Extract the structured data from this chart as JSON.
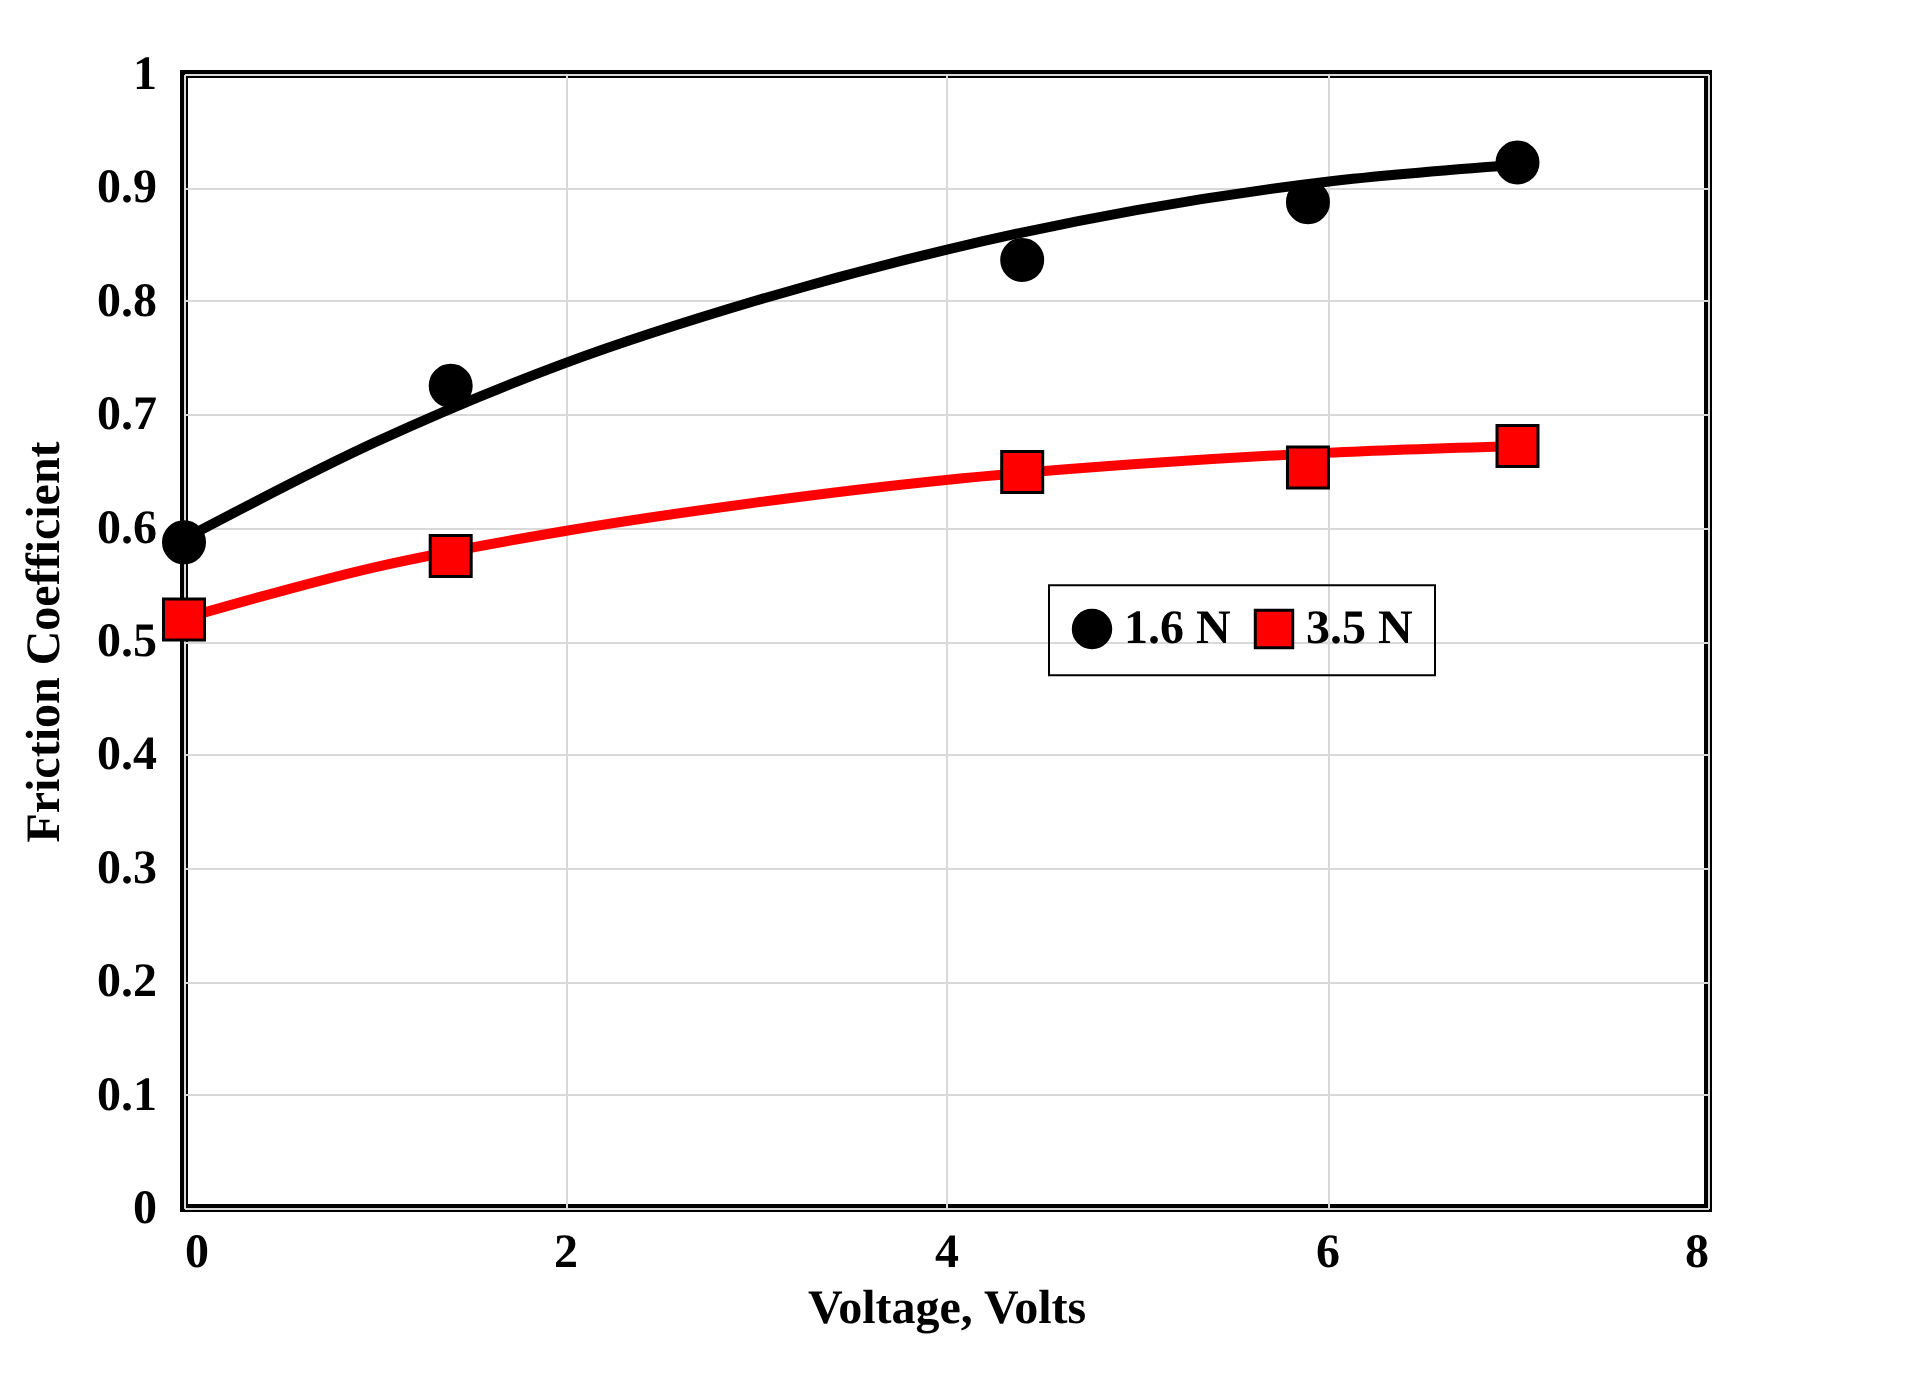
{
  "chart_data": {
    "type": "scatter",
    "xlabel": "Voltage, Volts",
    "ylabel": "Friction Coefficient",
    "xlim": [
      0,
      8
    ],
    "xticks": [
      0,
      2,
      4,
      6,
      8
    ],
    "ylim": [
      0,
      1
    ],
    "yticks": [
      0,
      0.1,
      0.2,
      0.3,
      0.4,
      0.5,
      0.6,
      0.7,
      0.8,
      0.9,
      1
    ],
    "grid": true,
    "legend": "right",
    "series": [
      {
        "type": "line",
        "color": "#000000",
        "marker": "none",
        "x": [
          0,
          1,
          2,
          3,
          4,
          5,
          6,
          7
        ],
        "values": [
          0.59,
          0.675,
          0.745,
          0.8,
          0.845,
          0.88,
          0.905,
          0.92
        ]
      },
      {
        "type": "line",
        "color": "#ff0000",
        "marker": "none",
        "x": [
          0,
          1,
          2,
          3,
          4,
          5,
          6,
          7
        ],
        "values": [
          0.52,
          0.565,
          0.597,
          0.622,
          0.642,
          0.656,
          0.666,
          0.672
        ]
      },
      {
        "name": "1.6 N",
        "color": "#000000",
        "marker": "circle",
        "x": [
          0,
          1.4,
          4.4,
          5.9,
          7.0
        ],
        "values": [
          0.587,
          0.725,
          0.836,
          0.887,
          0.922
        ]
      },
      {
        "name": "3.5 N",
        "color": "#ff0000",
        "marker": "square",
        "x": [
          0,
          1.4,
          4.4,
          5.9,
          7.0
        ],
        "values": [
          0.519,
          0.575,
          0.649,
          0.653,
          0.672
        ]
      }
    ]
  }
}
